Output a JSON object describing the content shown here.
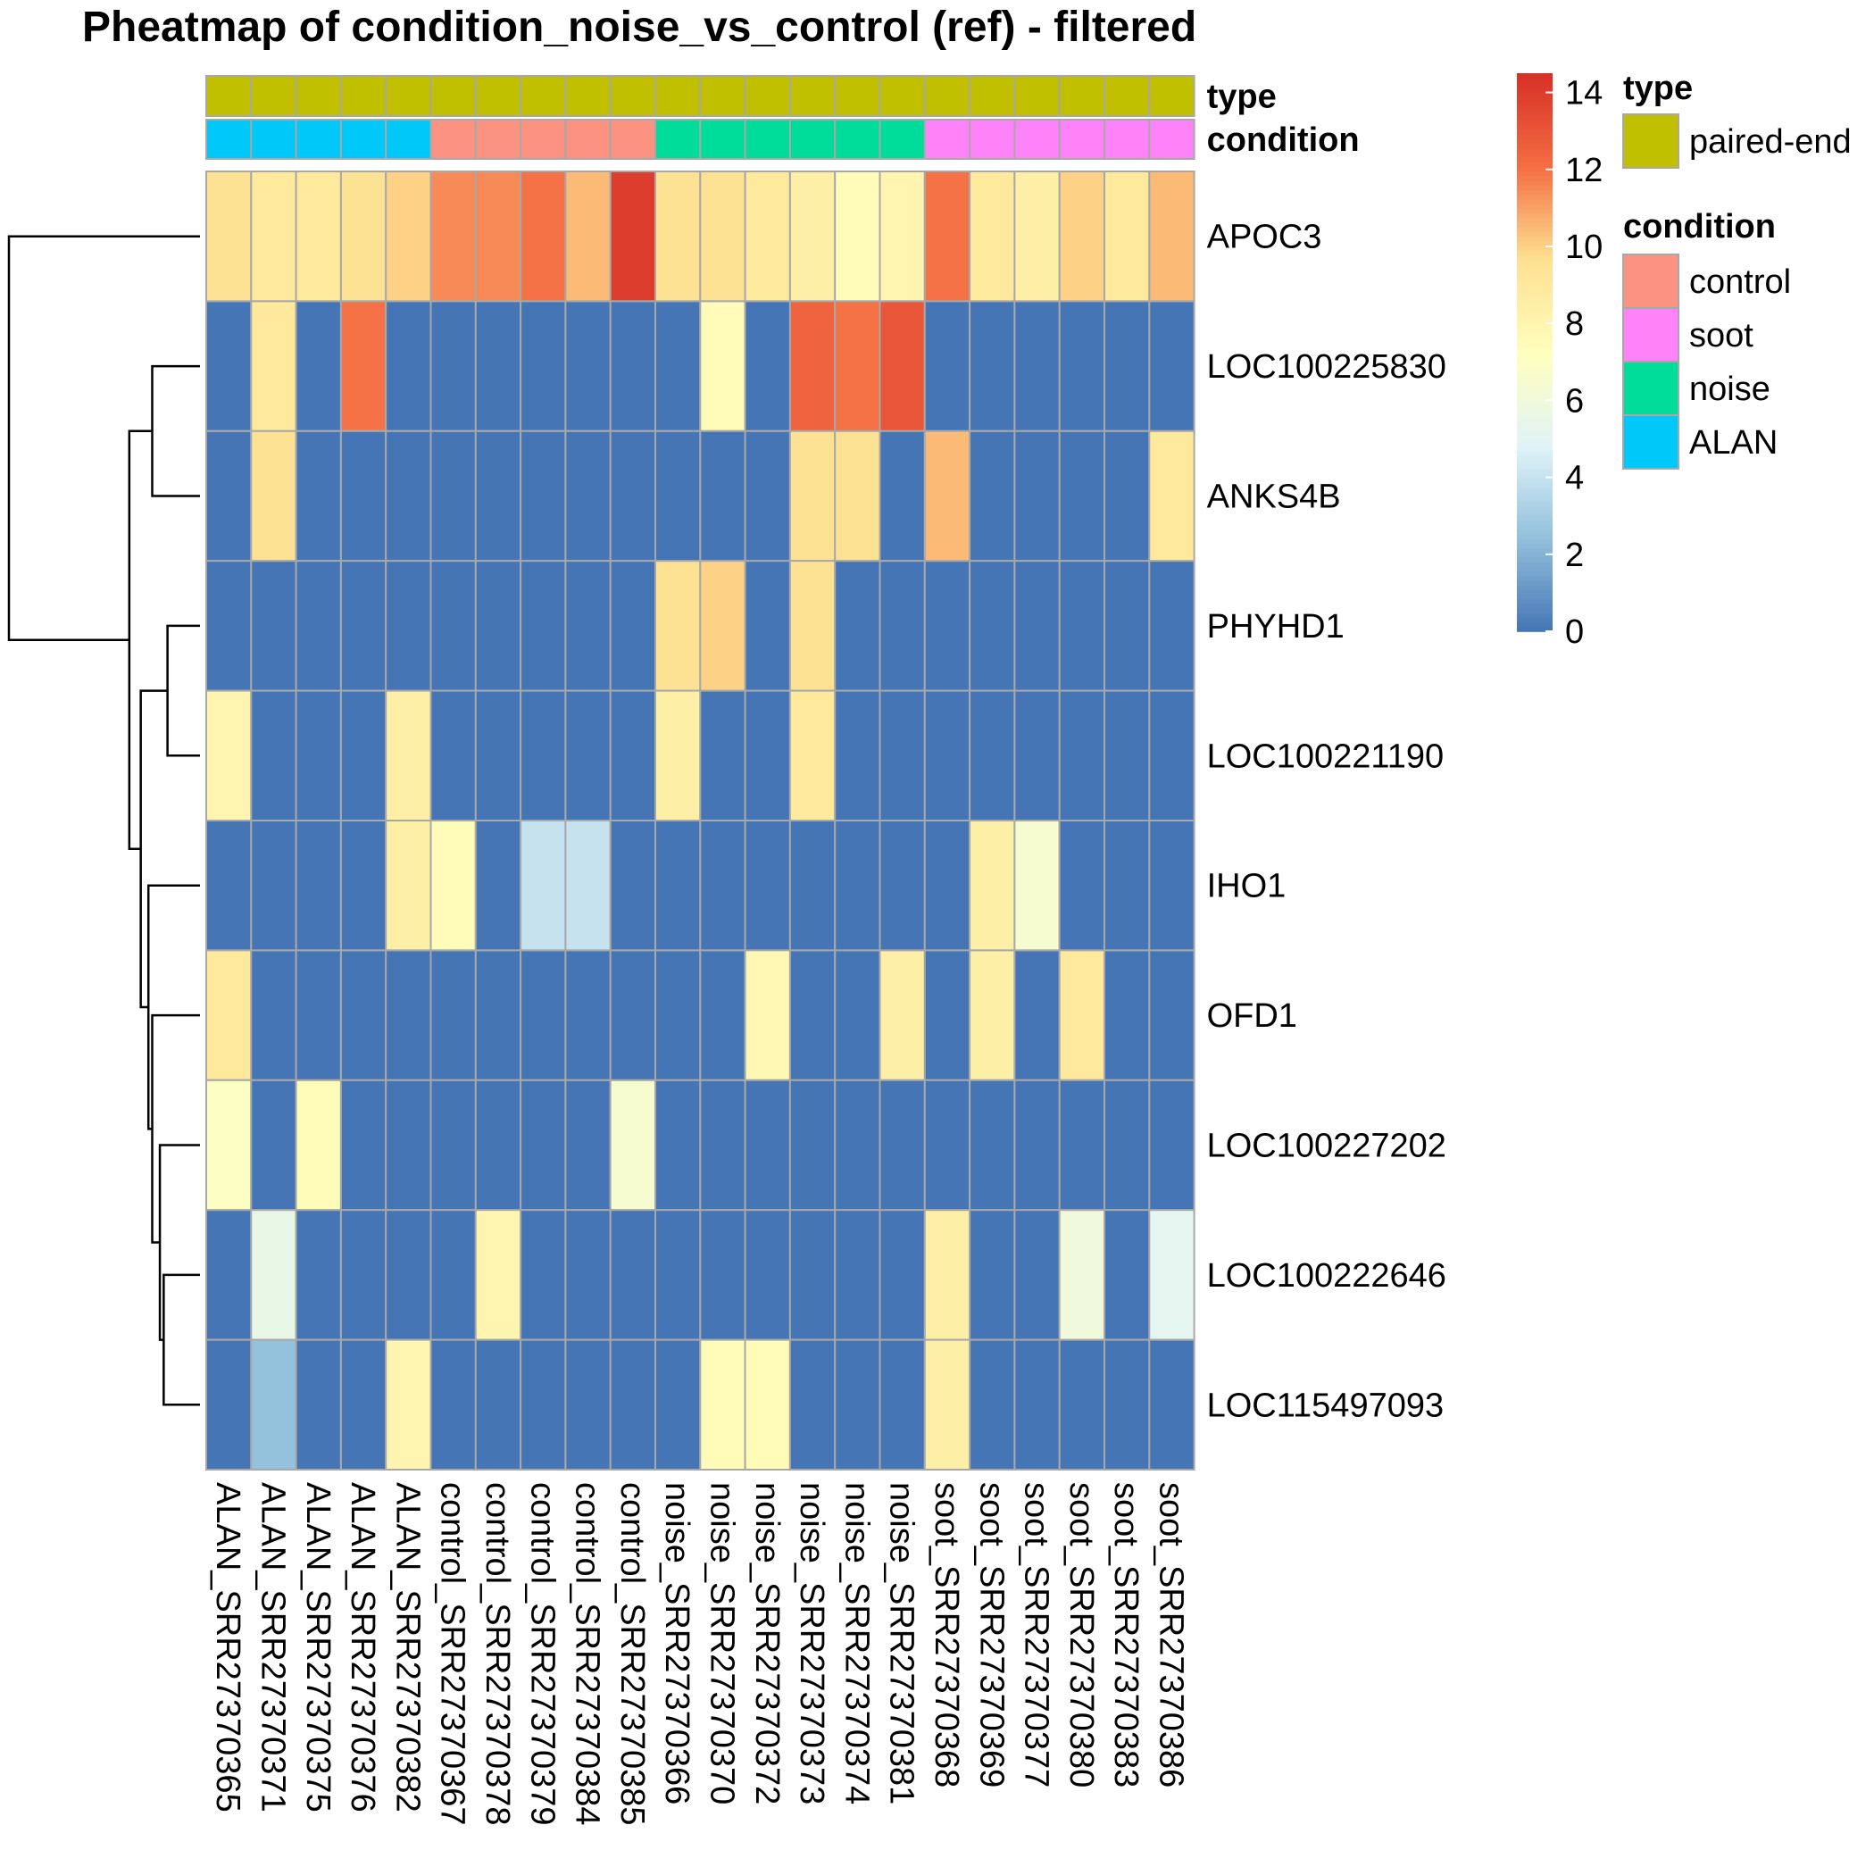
{
  "chart_data": {
    "type": "heatmap",
    "title": "Pheatmap of condition_noise_vs_control (ref) - filtered",
    "columns": [
      "ALAN_SRR27370365",
      "ALAN_SRR27370371",
      "ALAN_SRR27370375",
      "ALAN_SRR27370376",
      "ALAN_SRR27370382",
      "control_SRR27370367",
      "control_SRR27370378",
      "control_SRR27370379",
      "control_SRR27370384",
      "control_SRR27370385",
      "noise_SRR27370366",
      "noise_SRR27370370",
      "noise_SRR27370372",
      "noise_SRR27370373",
      "noise_SRR27370374",
      "noise_SRR27370381",
      "soot_SRR27370368",
      "soot_SRR27370369",
      "soot_SRR27370377",
      "soot_SRR27370380",
      "soot_SRR27370383",
      "soot_SRR27370386"
    ],
    "rows": [
      "APOC3",
      "LOC100225830",
      "ANKS4B",
      "PHYHD1",
      "LOC100221190",
      "IHO1",
      "OFD1",
      "LOC100227202",
      "LOC100222646",
      "LOC115497093"
    ],
    "values": [
      [
        9.5,
        9,
        9,
        9.5,
        10,
        11.5,
        11.5,
        12,
        10.5,
        14,
        9.5,
        9.5,
        9,
        8.5,
        7.5,
        8,
        12,
        9,
        8.5,
        10,
        9,
        10.5
      ],
      [
        0,
        9,
        0,
        12,
        0,
        0,
        0,
        0,
        0,
        0,
        0,
        7.5,
        0,
        12.5,
        12,
        13,
        0,
        0,
        0,
        0,
        0,
        0
      ],
      [
        0,
        9.5,
        0,
        0,
        0,
        0,
        0,
        0,
        0,
        0,
        0,
        0,
        0,
        9.5,
        9.5,
        0,
        10.5,
        0,
        0,
        0,
        0,
        9
      ],
      [
        0,
        0,
        0,
        0,
        0,
        0,
        0,
        0,
        0,
        0,
        9.5,
        10,
        0,
        9.5,
        0,
        0,
        0,
        0,
        0,
        0,
        0,
        0
      ],
      [
        8,
        0,
        0,
        0,
        8.5,
        0,
        0,
        0,
        0,
        0,
        8.5,
        0,
        0,
        9,
        0,
        0,
        0,
        0,
        0,
        0,
        0,
        0
      ],
      [
        0,
        0,
        0,
        0,
        8.5,
        7.5,
        0,
        4,
        4,
        0,
        0,
        0,
        0,
        0,
        0,
        0,
        0,
        8.5,
        6.5,
        0,
        0,
        0
      ],
      [
        9,
        0,
        0,
        0,
        0,
        0,
        0,
        0,
        0,
        0,
        0,
        0,
        7.8,
        0,
        0,
        8.5,
        0,
        8.5,
        0,
        9,
        0,
        0
      ],
      [
        7,
        0,
        7.5,
        0,
        0,
        0,
        0,
        0,
        0,
        6.5,
        0,
        0,
        0,
        0,
        0,
        0,
        0,
        0,
        0,
        0,
        0,
        0
      ],
      [
        0,
        5.5,
        0,
        0,
        0,
        0,
        8,
        0,
        0,
        0,
        0,
        0,
        0,
        0,
        0,
        0,
        8.5,
        0,
        0,
        6,
        0,
        5.2
      ],
      [
        0,
        2.5,
        0,
        0,
        8,
        0,
        0,
        0,
        0,
        0,
        0,
        7.5,
        7.5,
        0,
        0,
        0,
        8.5,
        0,
        0,
        0,
        0,
        0
      ]
    ],
    "annotations": {
      "type": [
        "paired-end",
        "paired-end",
        "paired-end",
        "paired-end",
        "paired-end",
        "paired-end",
        "paired-end",
        "paired-end",
        "paired-end",
        "paired-end",
        "paired-end",
        "paired-end",
        "paired-end",
        "paired-end",
        "paired-end",
        "paired-end",
        "paired-end",
        "paired-end",
        "paired-end",
        "paired-end",
        "paired-end",
        "paired-end"
      ],
      "condition": [
        "ALAN",
        "ALAN",
        "ALAN",
        "ALAN",
        "ALAN",
        "control",
        "control",
        "control",
        "control",
        "control",
        "noise",
        "noise",
        "noise",
        "noise",
        "noise",
        "noise",
        "soot",
        "soot",
        "soot",
        "soot",
        "soot",
        "soot"
      ]
    },
    "annotation_labels": [
      "type",
      "condition"
    ],
    "color_scale": {
      "min": 0,
      "max": 14.5,
      "ticks": [
        0,
        2,
        4,
        6,
        8,
        10,
        12,
        14
      ],
      "stops": [
        {
          "v": 0,
          "c": "#4575b4"
        },
        {
          "v": 2.4,
          "c": "#91bfdb"
        },
        {
          "v": 4.8,
          "c": "#e0f3f8"
        },
        {
          "v": 7.2,
          "c": "#ffffbf"
        },
        {
          "v": 9.7,
          "c": "#fee090"
        },
        {
          "v": 12.1,
          "c": "#f46d43"
        },
        {
          "v": 14.5,
          "c": "#d73027"
        }
      ]
    },
    "legend": {
      "type": {
        "title": "type",
        "entries": [
          {
            "label": "paired-end",
            "color": "#c0c000"
          }
        ]
      },
      "condition": {
        "title": "condition",
        "entries": [
          {
            "label": "control",
            "color": "#fb9282"
          },
          {
            "label": "soot",
            "color": "#ff83f8"
          },
          {
            "label": "noise",
            "color": "#00dc9a"
          },
          {
            "label": "ALAN",
            "color": "#00c8f8"
          }
        ]
      }
    },
    "row_dendrogram": {
      "merges": [
        {
          "a": 1,
          "b": 2,
          "h": 0.25
        },
        {
          "a": 3,
          "b": 4,
          "h": 0.17
        },
        {
          "a": 8,
          "b": 9,
          "h": 0.19
        },
        {
          "a": 7,
          "b": "c2",
          "h": 0.21
        },
        {
          "a": 6,
          "b": "c3",
          "h": 0.25
        },
        {
          "a": 5,
          "b": "c4",
          "h": 0.27
        },
        {
          "a": "c1",
          "b": "c5",
          "h": 0.31
        },
        {
          "a": "c0",
          "b": "c6",
          "h": 0.37
        },
        {
          "a": 0,
          "b": "c7",
          "h": 1.0
        }
      ]
    },
    "grid": true,
    "legend_placement": "right"
  }
}
